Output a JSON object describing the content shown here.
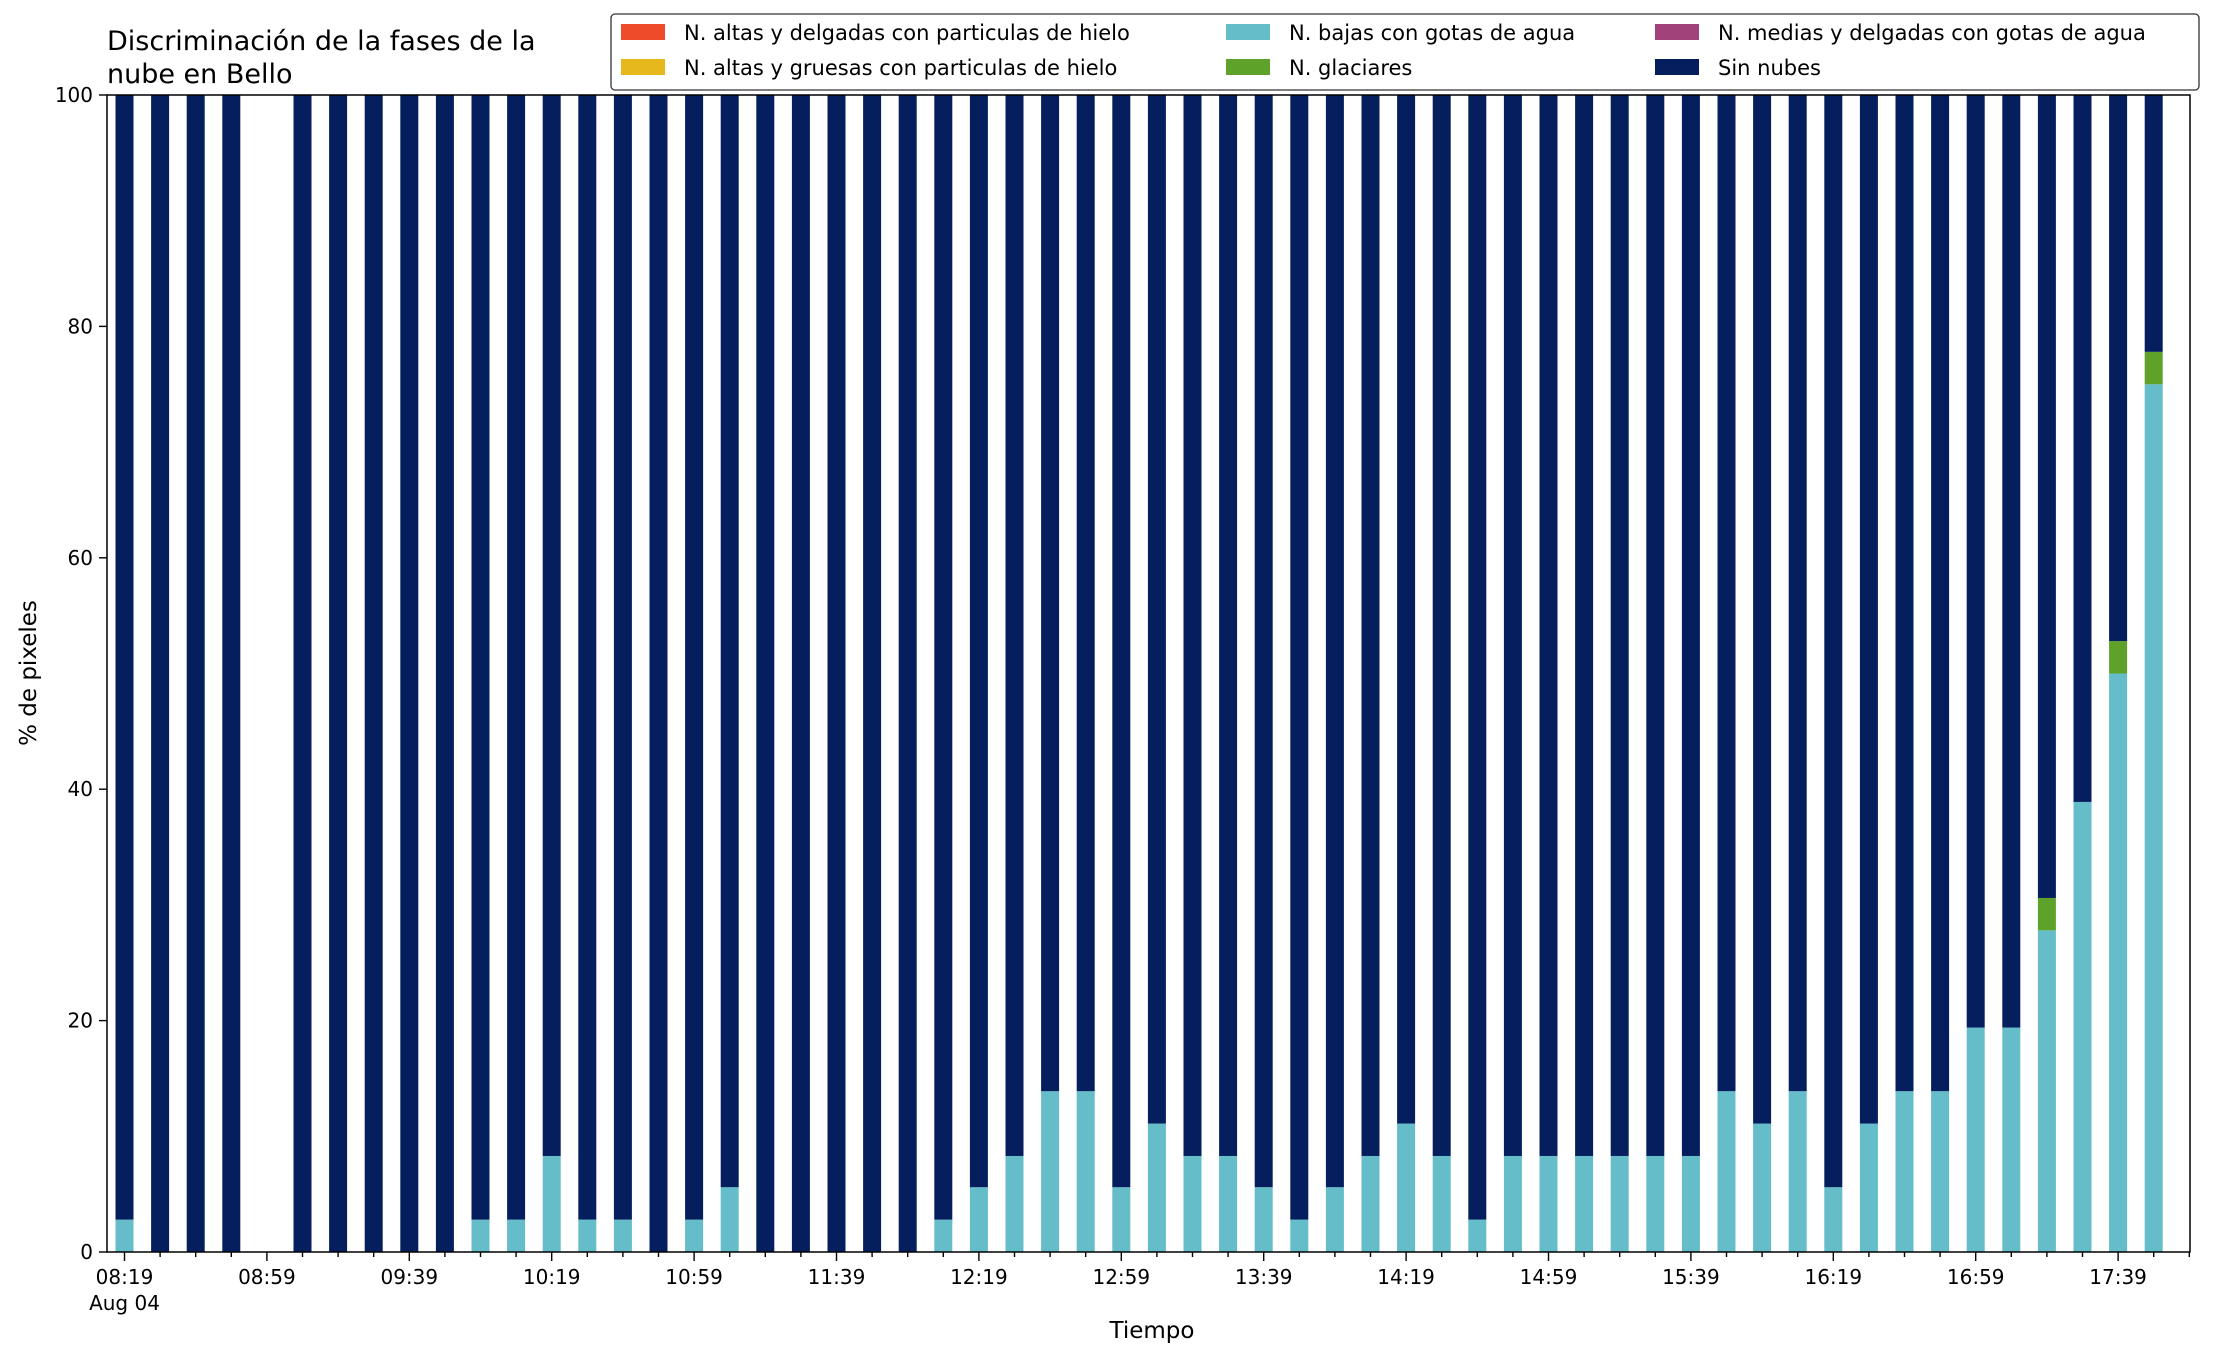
{
  "chart_data": {
    "type": "bar",
    "stacked": true,
    "title_lines": [
      "Discriminación de la fases de la",
      "nube en Bello"
    ],
    "xlabel": "Tiempo",
    "ylabel": "% de pixeles",
    "ylim": [
      0,
      100
    ],
    "yticks": [
      "0",
      "20",
      "40",
      "60",
      "80",
      "100"
    ],
    "xtick_labels": [
      "08:19",
      "08:59",
      "09:39",
      "10:19",
      "10:59",
      "11:39",
      "12:19",
      "12:59",
      "13:39",
      "14:19",
      "14:59",
      "15:39",
      "16:19",
      "16:59",
      "17:39"
    ],
    "x_sublabel": "Aug 04",
    "x_minutes_first": 499,
    "x_step_minutes": 10,
    "x_major_tick_every": 4,
    "x_extra_minor_ticks": 1,
    "legend_position": "top-right, 3 columns",
    "legend": [
      {
        "name": "N. altas y delgadas con particulas de hielo",
        "color": "#ee4b2b"
      },
      {
        "name": "N. altas y gruesas con particulas de hielo",
        "color": "#e6b81c"
      },
      {
        "name": "N. bajas con gotas de agua",
        "color": "#64bdc9"
      },
      {
        "name": "N. glaciares",
        "color": "#5ea229"
      },
      {
        "name": "N. medias y delgadas con gotas de agua",
        "color": "#a2427a"
      },
      {
        "name": "Sin nubes",
        "color": "#041e5e"
      }
    ],
    "categories": [
      "08:19",
      "08:29",
      "08:39",
      "08:49",
      "08:59",
      "09:09",
      "09:19",
      "09:29",
      "09:39",
      "09:49",
      "09:59",
      "10:09",
      "10:19",
      "10:29",
      "10:39",
      "10:49",
      "10:59",
      "11:09",
      "11:19",
      "11:29",
      "11:39",
      "11:49",
      "11:59",
      "12:09",
      "12:19",
      "12:29",
      "12:39",
      "12:49",
      "12:59",
      "13:09",
      "13:19",
      "13:29",
      "13:39",
      "13:49",
      "13:59",
      "14:09",
      "14:19",
      "14:29",
      "14:39",
      "14:49",
      "14:59",
      "15:09",
      "15:19",
      "15:29",
      "15:39",
      "15:49",
      "15:59",
      "16:09",
      "16:19",
      "16:29",
      "16:39",
      "16:49",
      "16:59",
      "17:09",
      "17:19",
      "17:29",
      "17:39",
      "17:49"
    ],
    "series": [
      {
        "name": "N. altas y delgadas con particulas de hielo",
        "color": "#ee4b2b",
        "values": [
          0,
          0,
          0,
          0,
          null,
          0,
          0,
          0,
          0,
          0,
          0,
          0,
          0,
          0,
          0,
          0,
          0,
          0,
          0,
          0,
          0,
          0,
          0,
          0,
          0,
          0,
          0,
          0,
          0,
          0,
          0,
          0,
          0,
          0,
          0,
          0,
          0,
          0,
          0,
          0,
          0,
          0,
          0,
          0,
          0,
          0,
          0,
          0,
          0,
          0,
          0,
          0,
          0,
          0,
          0,
          0,
          0,
          0
        ]
      },
      {
        "name": "N. altas y gruesas con particulas de hielo",
        "color": "#e6b81c",
        "values": [
          0,
          0,
          0,
          0,
          null,
          0,
          0,
          0,
          0,
          0,
          0,
          0,
          0,
          0,
          0,
          0,
          0,
          0,
          0,
          0,
          0,
          0,
          0,
          0,
          0,
          0,
          0,
          0,
          0,
          0,
          0,
          0,
          0,
          0,
          0,
          0,
          0,
          0,
          0,
          0,
          0,
          0,
          0,
          0,
          0,
          0,
          0,
          0,
          0,
          0,
          0,
          0,
          0,
          0,
          0,
          0,
          0,
          0
        ]
      },
      {
        "name": "N. bajas con gotas de agua",
        "color": "#64bdc9",
        "values": [
          2.8,
          0,
          0,
          0,
          null,
          0,
          0,
          0,
          0,
          0,
          2.8,
          2.8,
          8.3,
          2.8,
          2.8,
          0,
          2.8,
          5.6,
          0,
          0,
          0,
          0,
          0,
          2.8,
          5.6,
          8.3,
          13.9,
          13.9,
          5.6,
          11.1,
          8.3,
          8.3,
          5.6,
          2.8,
          5.6,
          8.3,
          11.1,
          8.3,
          2.8,
          8.3,
          8.3,
          8.3,
          8.3,
          8.3,
          8.3,
          13.9,
          11.1,
          13.9,
          5.6,
          11.1,
          13.9,
          13.9,
          19.4,
          19.4,
          27.8,
          38.9,
          50.0,
          75.0
        ]
      },
      {
        "name": "N. glaciares",
        "color": "#5ea229",
        "values": [
          0,
          0,
          0,
          0,
          null,
          0,
          0,
          0,
          0,
          0,
          0,
          0,
          0,
          0,
          0,
          0,
          0,
          0,
          0,
          0,
          0,
          0,
          0,
          0,
          0,
          0,
          0,
          0,
          0,
          0,
          0,
          0,
          0,
          0,
          0,
          0,
          0,
          0,
          0,
          0,
          0,
          0,
          0,
          0,
          0,
          0,
          0,
          0,
          0,
          0,
          0,
          0,
          0,
          0,
          2.8,
          0,
          2.8,
          2.8
        ]
      },
      {
        "name": "N. medias y delgadas con gotas de agua",
        "color": "#a2427a",
        "values": [
          0,
          0,
          0,
          0,
          null,
          0,
          0,
          0,
          0,
          0,
          0,
          0,
          0,
          0,
          0,
          0,
          0,
          0,
          0,
          0,
          0,
          0,
          0,
          0,
          0,
          0,
          0,
          0,
          0,
          0,
          0,
          0,
          0,
          0,
          0,
          0,
          0,
          0,
          0,
          0,
          0,
          0,
          0,
          0,
          0,
          0,
          0,
          0,
          0,
          0,
          0,
          0,
          0,
          0,
          0,
          0,
          0,
          0
        ]
      },
      {
        "name": "Sin nubes",
        "color": "#041e5e",
        "values": [
          97.2,
          100,
          100,
          100,
          null,
          100,
          100,
          100,
          100,
          100,
          97.2,
          97.2,
          91.7,
          97.2,
          97.2,
          100,
          97.2,
          94.4,
          100,
          100,
          100,
          100,
          100,
          97.2,
          94.4,
          91.7,
          86.1,
          86.1,
          94.4,
          88.9,
          91.7,
          91.7,
          94.4,
          97.2,
          94.4,
          91.7,
          88.9,
          91.7,
          97.2,
          91.7,
          91.7,
          91.7,
          91.7,
          91.7,
          91.7,
          86.1,
          88.9,
          86.1,
          94.4,
          88.9,
          86.1,
          86.1,
          80.6,
          80.6,
          69.4,
          61.1,
          47.2,
          22.2
        ]
      }
    ]
  }
}
